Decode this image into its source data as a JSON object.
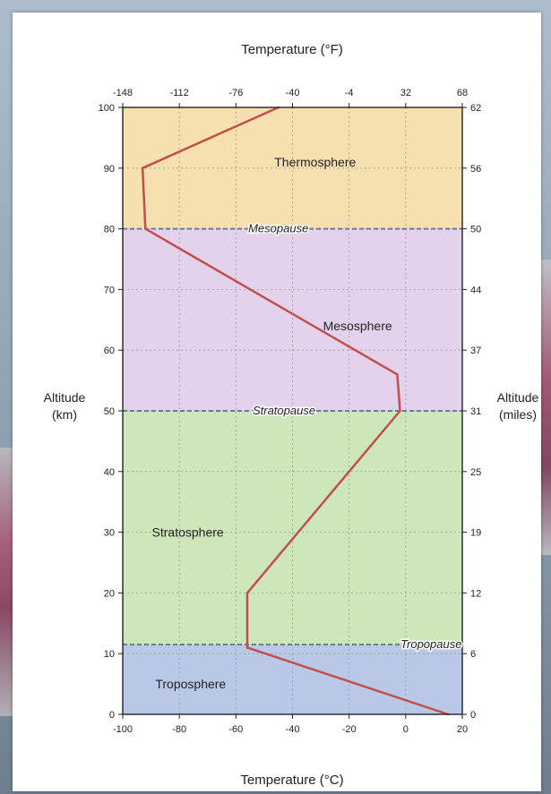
{
  "chart_data": {
    "type": "line",
    "x_axis_bottom": {
      "label": "Temperature (°C)",
      "min": -100,
      "max": 20,
      "ticks": [
        -100,
        -80,
        -60,
        -40,
        -20,
        0,
        20
      ],
      "tick_labels": [
        "-100",
        "-80",
        "-60",
        "-40",
        "-20",
        "0",
        "20"
      ]
    },
    "x_axis_top": {
      "label": "Temperature (°F)",
      "ticks_celsius": [
        -100,
        -80,
        -60,
        -40,
        -20,
        0,
        20
      ],
      "tick_labels": [
        "-148",
        "-112",
        "-76",
        "-40",
        "-4",
        "32",
        "68"
      ]
    },
    "y_axis_left": {
      "label": "Altitude",
      "unit": "(km)",
      "min": 0,
      "max": 100,
      "ticks": [
        0,
        10,
        20,
        30,
        40,
        50,
        60,
        70,
        80,
        90,
        100
      ],
      "tick_labels": [
        "0",
        "10",
        "20",
        "30",
        "40",
        "50",
        "60",
        "70",
        "80",
        "90",
        "100"
      ]
    },
    "y_axis_right": {
      "label": "Altitude",
      "unit": "(miles)",
      "ticks_km": [
        0,
        10,
        20,
        30,
        40,
        50,
        60,
        70,
        80,
        90,
        100
      ],
      "tick_labels": [
        "0",
        "6",
        "12",
        "19",
        "25",
        "31",
        "37",
        "44",
        "50",
        "56",
        "62"
      ]
    },
    "series": [
      {
        "color": "#c0504d",
        "points": [
          {
            "x": 15,
            "y": 0
          },
          {
            "x": -56,
            "y": 11
          },
          {
            "x": -56,
            "y": 20
          },
          {
            "x": -2,
            "y": 50
          },
          {
            "x": -3,
            "y": 56
          },
          {
            "x": -92,
            "y": 80
          },
          {
            "x": -93,
            "y": 90
          },
          {
            "x": -45,
            "y": 100
          }
        ]
      }
    ],
    "layers": [
      {
        "name": "Troposphere",
        "from": 0,
        "to": 11.5,
        "color": "#b8c8e6"
      },
      {
        "name": "Stratosphere",
        "from": 11.5,
        "to": 50,
        "color": "#cde7bb"
      },
      {
        "name": "Mesosphere",
        "from": 50,
        "to": 80,
        "color": "#e4d2ec"
      },
      {
        "name": "Thermosphere",
        "from": 80,
        "to": 100,
        "color": "#f6e0b0"
      }
    ],
    "layer_labels": [
      {
        "text": "Troposphere",
        "x": -76,
        "y": 5
      },
      {
        "text": "Stratosphere",
        "x": -77,
        "y": 30
      },
      {
        "text": "Mesosphere",
        "x": -17,
        "y": 64
      },
      {
        "text": "Thermosphere",
        "x": -32,
        "y": 91
      }
    ],
    "boundaries": [
      {
        "name": "Tropopause",
        "y": 11.5,
        "label_x": 9
      },
      {
        "name": "Stratopause",
        "y": 50,
        "label_x": -43
      },
      {
        "name": "Mesopause",
        "y": 80,
        "label_x": -45
      }
    ],
    "grid": true
  }
}
